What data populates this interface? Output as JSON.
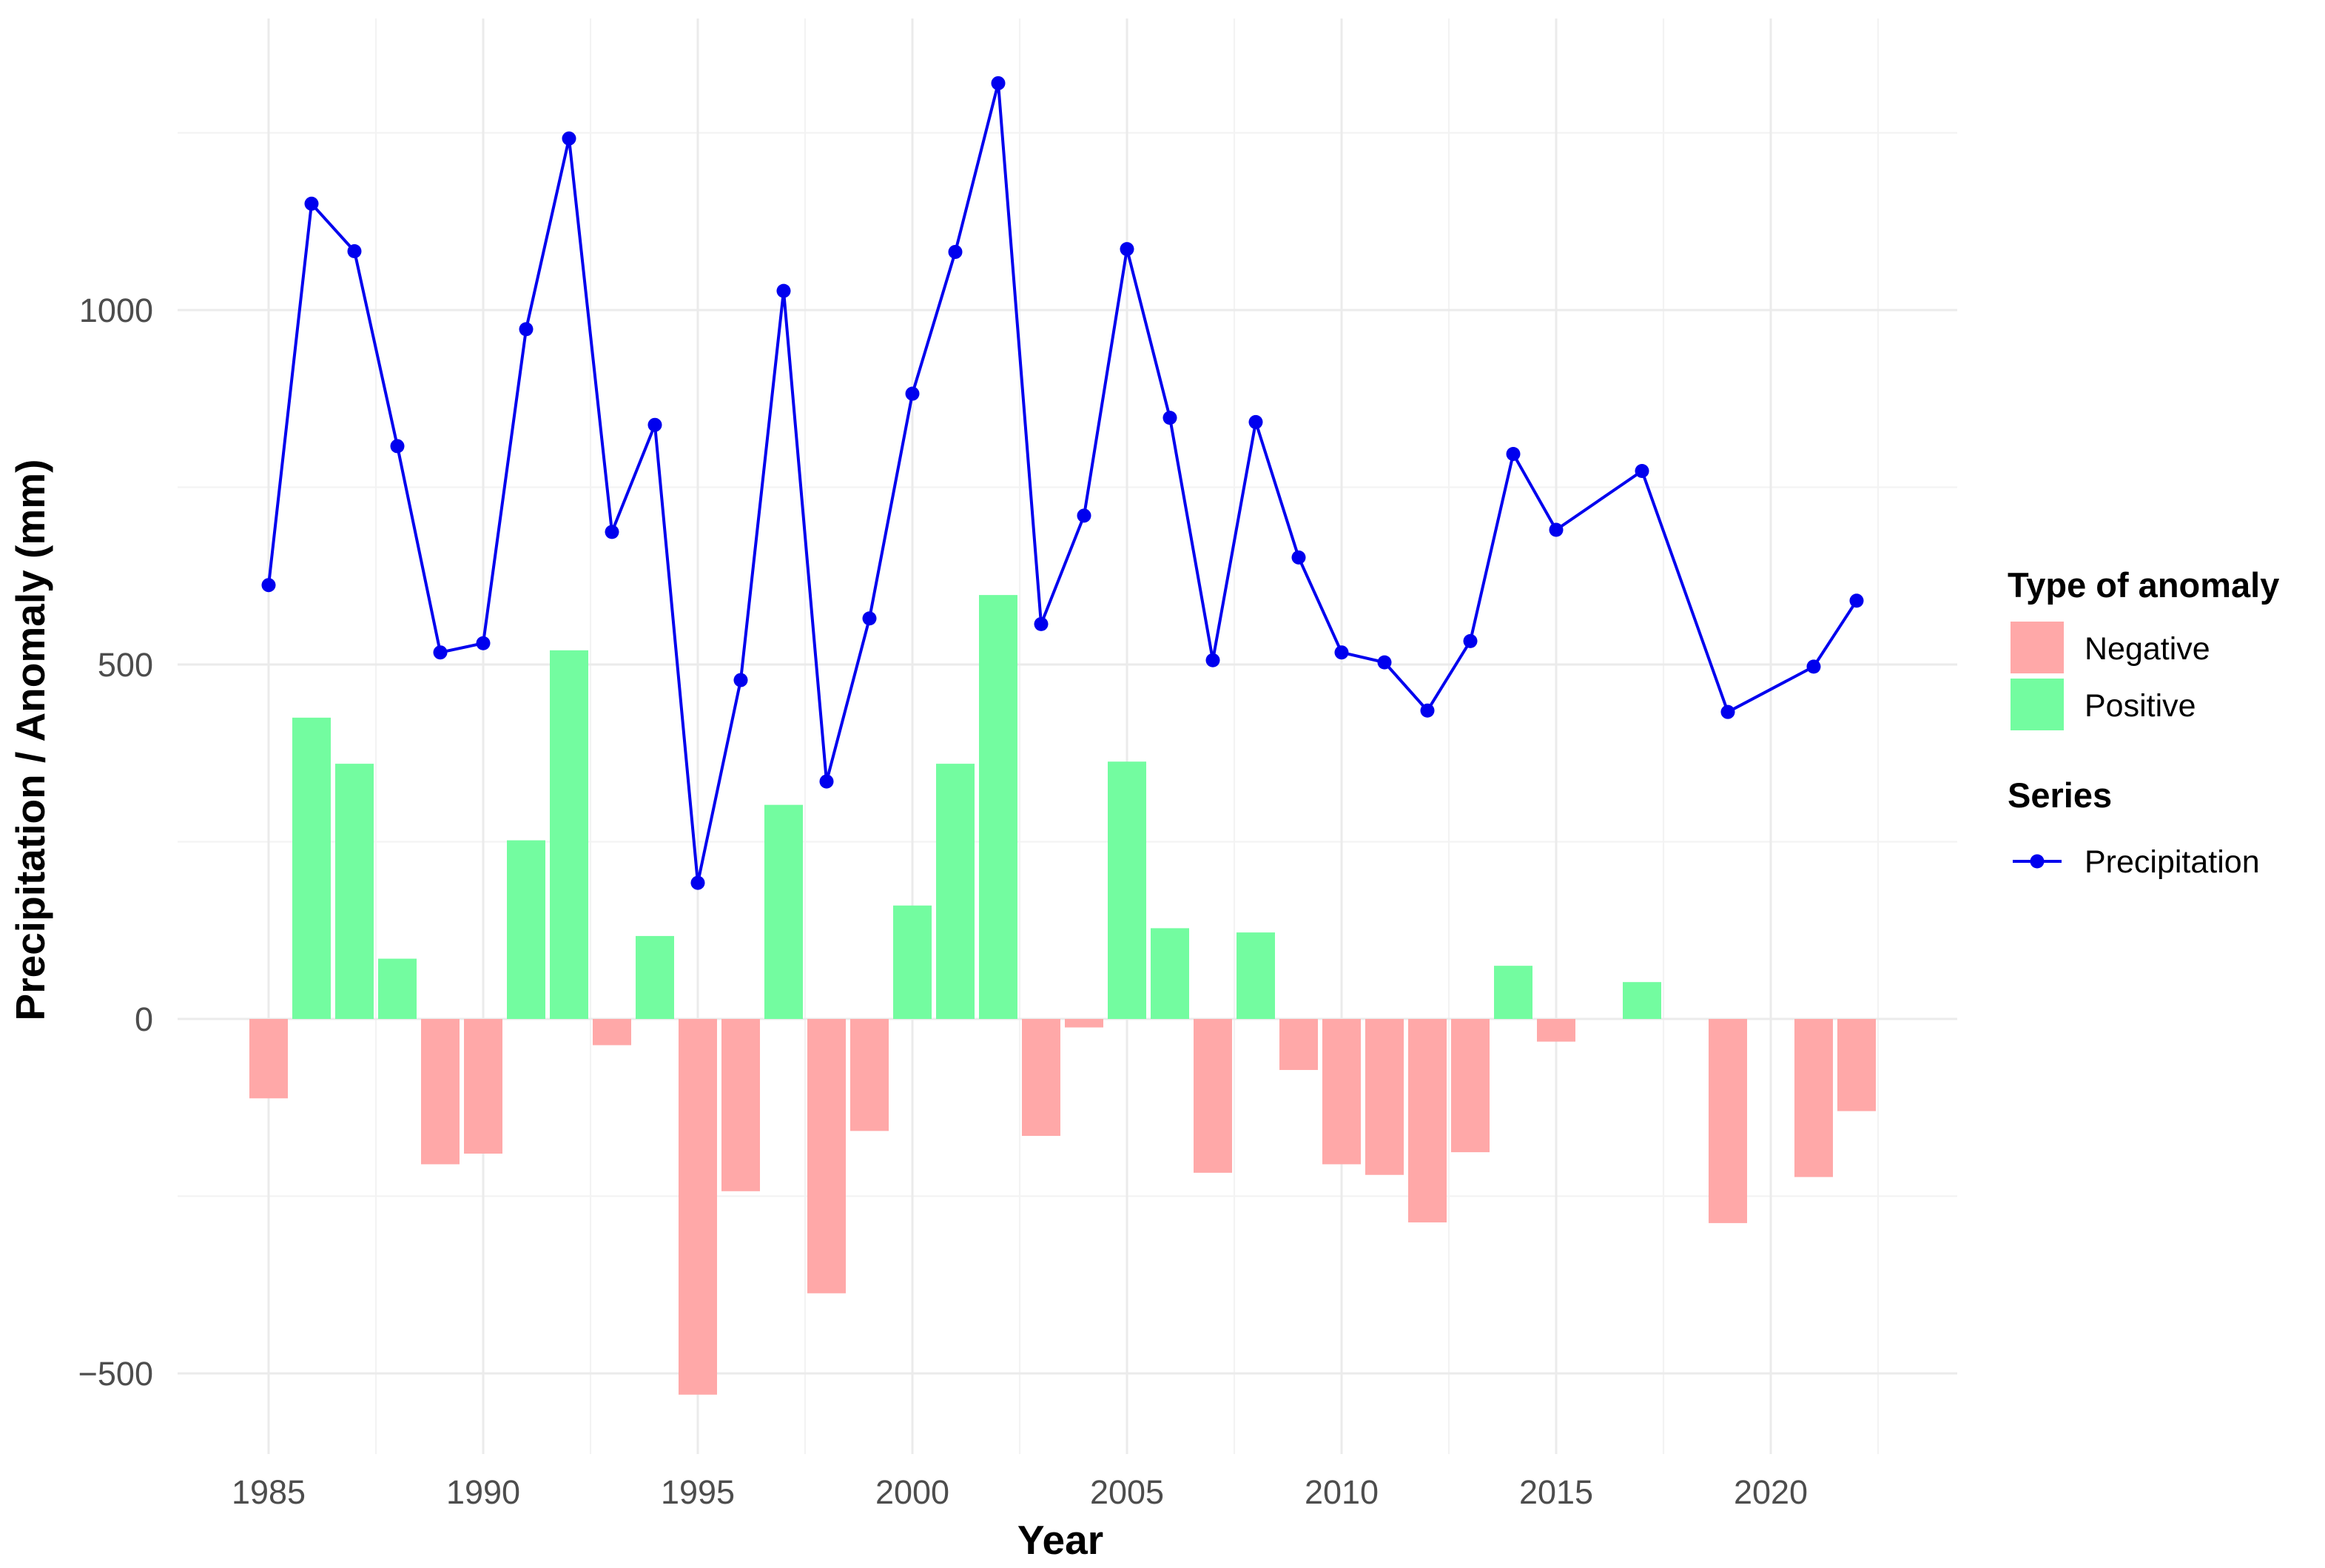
{
  "chart_data": {
    "type": "bar",
    "title": "",
    "xlabel": "Year",
    "ylabel": "Precipitation / Anomaly (mm)",
    "xlim": [
      1983,
      2024.5
    ],
    "ylim": [
      -620,
      1420
    ],
    "x_ticks": [
      1985,
      1990,
      1995,
      2000,
      2005,
      2010,
      2015,
      2020
    ],
    "y_ticks": [
      -500,
      0,
      500,
      1000
    ],
    "y_tick_labels": [
      "−500",
      "0",
      "500",
      "1000"
    ],
    "grid": true,
    "legend_position": "right",
    "colors": {
      "negative": "#ffa8a8",
      "positive": "#73fca0",
      "precipitation": "#0000ee",
      "grid_major": "#ebebeb",
      "grid_minor": "#f3f3f3"
    },
    "legends": [
      {
        "title": "Type of anomaly",
        "items": [
          {
            "label": "Negative",
            "kind": "fill",
            "color_key": "negative"
          },
          {
            "label": "Positive",
            "kind": "fill",
            "color_key": "positive"
          }
        ]
      },
      {
        "title": "Series",
        "items": [
          {
            "label": "Precipitation",
            "kind": "line",
            "color_key": "precipitation"
          }
        ]
      }
    ],
    "anomaly": {
      "x": [
        1985,
        1986,
        1987,
        1988,
        1989,
        1990,
        1991,
        1992,
        1993,
        1994,
        1995,
        1996,
        1997,
        1998,
        1999,
        2000,
        2001,
        2002,
        2003,
        2004,
        2005,
        2006,
        2007,
        2008,
        2009,
        2010,
        2011,
        2012,
        2013,
        2014,
        2015,
        2017,
        2019,
        2021,
        2022
      ],
      "values": [
        -112,
        425,
        360,
        85,
        -205,
        -190,
        252,
        520,
        -37,
        117,
        -530,
        -243,
        302,
        -387,
        -158,
        160,
        360,
        598,
        -165,
        -12,
        363,
        128,
        -217,
        122,
        -72,
        -205,
        -220,
        -287,
        -188,
        75,
        -32,
        52,
        -288,
        -223,
        -130
      ]
    },
    "series": [
      {
        "name": "Precipitation",
        "x": [
          1985,
          1986,
          1987,
          1988,
          1989,
          1990,
          1991,
          1992,
          1993,
          1994,
          1995,
          1996,
          1997,
          1998,
          1999,
          2000,
          2001,
          2002,
          2003,
          2004,
          2005,
          2006,
          2007,
          2008,
          2009,
          2010,
          2011,
          2012,
          2013,
          2014,
          2015,
          2017,
          2019,
          2021,
          2022
        ],
        "values": [
          612,
          1150,
          1083,
          808,
          517,
          530,
          973,
          1242,
          687,
          838,
          192,
          478,
          1027,
          335,
          565,
          882,
          1082,
          1320,
          557,
          710,
          1086,
          848,
          506,
          842,
          651,
          517,
          503,
          435,
          533,
          797,
          690,
          773,
          433,
          497,
          590
        ]
      }
    ]
  }
}
